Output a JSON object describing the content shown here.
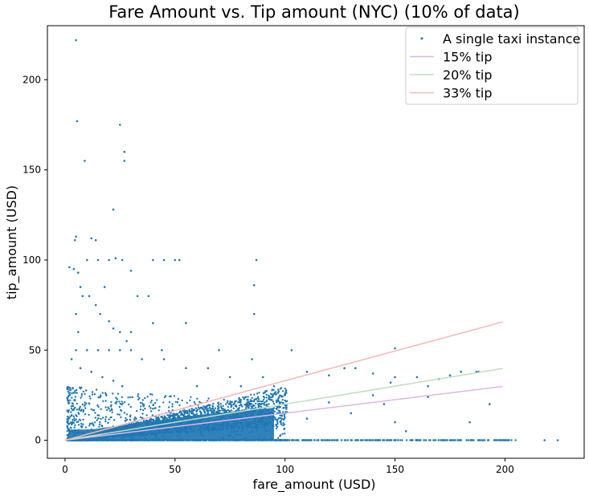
{
  "chart_data": {
    "type": "scatter",
    "title": "Fare Amount vs. Tip amount (NYC) (10% of data)",
    "xlabel": "fare_amount (USD)",
    "ylabel": "tip_amount (USD)",
    "xlim": [
      -8,
      236
    ],
    "ylim": [
      -10,
      230
    ],
    "xticks": [
      0,
      50,
      100,
      150,
      200
    ],
    "yticks": [
      0,
      50,
      100,
      150,
      200
    ],
    "grid": false,
    "legend_position": "top-right",
    "legend": [
      {
        "label": "A single taxi instance",
        "kind": "marker",
        "color": "#1f77b4"
      },
      {
        "label": "15% tip",
        "kind": "line",
        "color": "#e2b4e8"
      },
      {
        "label": "20% tip",
        "kind": "line",
        "color": "#bfe0bc"
      },
      {
        "label": "33% tip",
        "kind": "line",
        "color": "#f6b6b6"
      }
    ],
    "series": [
      {
        "name": "A single taxi instance",
        "type": "scatter",
        "color": "#1f77b4",
        "points": [
          [
            5,
            222
          ],
          [
            5.5,
            177
          ],
          [
            9,
            155
          ],
          [
            25,
            175
          ],
          [
            27,
            160
          ],
          [
            27,
            155
          ],
          [
            22,
            128
          ],
          [
            5,
            113
          ],
          [
            4.5,
            111
          ],
          [
            12,
            112
          ],
          [
            14,
            111
          ],
          [
            23,
            101
          ],
          [
            26,
            100
          ],
          [
            30,
            94
          ],
          [
            10,
            100
          ],
          [
            15,
            100
          ],
          [
            20,
            100
          ],
          [
            40,
            100
          ],
          [
            45,
            100
          ],
          [
            50,
            100
          ],
          [
            52,
            100
          ],
          [
            87,
            100
          ],
          [
            86,
            86
          ],
          [
            86,
            70
          ],
          [
            55,
            65
          ],
          [
            2,
            96
          ],
          [
            4,
            95
          ],
          [
            6,
            93
          ],
          [
            7,
            85
          ],
          [
            8,
            80
          ],
          [
            11,
            80
          ],
          [
            14,
            75
          ],
          [
            16,
            70
          ],
          [
            20,
            66
          ],
          [
            25,
            60
          ],
          [
            28,
            55
          ],
          [
            33,
            80
          ],
          [
            38,
            80
          ],
          [
            40,
            65
          ],
          [
            18,
            85
          ],
          [
            22,
            62
          ],
          [
            30,
            60
          ],
          [
            44,
            50
          ],
          [
            70,
            50
          ],
          [
            85,
            45
          ],
          [
            103,
            50
          ],
          [
            150,
            51
          ],
          [
            110,
            38
          ],
          [
            120,
            36
          ],
          [
            127,
            40
          ],
          [
            132,
            40
          ],
          [
            140,
            37
          ],
          [
            148,
            32
          ],
          [
            150,
            35
          ],
          [
            160,
            35
          ],
          [
            165,
            30
          ],
          [
            170,
            34
          ],
          [
            175,
            36
          ],
          [
            180,
            38
          ],
          [
            187,
            38
          ],
          [
            188,
            38
          ],
          [
            193,
            20
          ],
          [
            184,
            10
          ],
          [
            150,
            10
          ],
          [
            155,
            5
          ],
          [
            165,
            24
          ],
          [
            140,
            25
          ],
          [
            120,
            21
          ],
          [
            100,
            25
          ],
          [
            95,
            30
          ],
          [
            90,
            35
          ],
          [
            110,
            12
          ],
          [
            130,
            15
          ],
          [
            145,
            20
          ],
          [
            160,
            0
          ],
          [
            175,
            0
          ],
          [
            190,
            0
          ],
          [
            198,
            0
          ],
          [
            200,
            0
          ],
          [
            218,
            0
          ],
          [
            224,
            0
          ],
          [
            5,
            70
          ],
          [
            6,
            60
          ],
          [
            5,
            50
          ],
          [
            10,
            50
          ],
          [
            15,
            50
          ],
          [
            20,
            50
          ],
          [
            25,
            50
          ],
          [
            30,
            50
          ],
          [
            3,
            45
          ],
          [
            7,
            40
          ],
          [
            12,
            38
          ],
          [
            17,
            35
          ],
          [
            22,
            33
          ],
          [
            26,
            30
          ],
          [
            35,
            45
          ],
          [
            45,
            45
          ],
          [
            55,
            40
          ],
          [
            65,
            40
          ],
          [
            60,
            30
          ],
          [
            75,
            35
          ],
          [
            80,
            30
          ]
        ],
        "band_note": "dense cloud of points concentrated at fare 0–100 USD, tip 0–30 USD"
      },
      {
        "name": "15% tip",
        "type": "line",
        "color": "#e2b4e8",
        "x": [
          0,
          199
        ],
        "y": [
          0,
          29.85
        ]
      },
      {
        "name": "20% tip",
        "type": "line",
        "color": "#bfe0bc",
        "x": [
          0,
          199
        ],
        "y": [
          0,
          39.8
        ]
      },
      {
        "name": "33% tip",
        "type": "line",
        "color": "#f6b6b6",
        "x": [
          0,
          199
        ],
        "y": [
          0,
          65.67
        ]
      }
    ]
  }
}
